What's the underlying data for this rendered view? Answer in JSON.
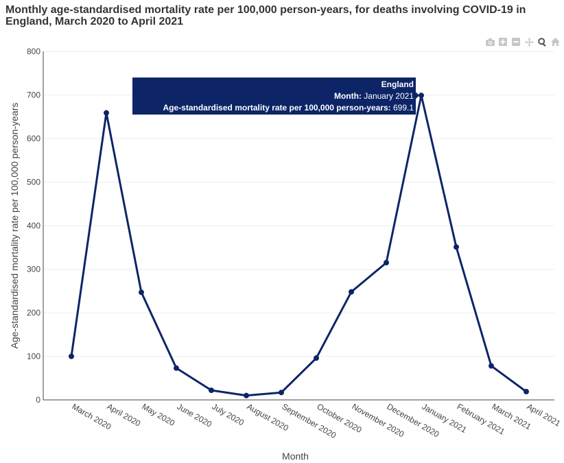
{
  "page": {
    "title": "Monthly age-standardised mortality rate per 100,000 person-years, for deaths involving COVID-19 in England, March 2020 to April 2021"
  },
  "modebar": {
    "icons": [
      "camera-icon",
      "zoom-in-icon",
      "zoom-out-icon",
      "pan-icon",
      "autoscale-icon",
      "home-icon"
    ],
    "color": "#c7c7c7"
  },
  "chart_data": {
    "type": "line",
    "title": "Monthly age-standardised mortality rate per 100,000 person-years, for deaths involving COVID-19 in England, March 2020 to April 2021",
    "xlabel": "Month",
    "ylabel": "Age-standardised mortality rate per 100,000 person-years",
    "ylim": [
      0,
      800
    ],
    "yticks": [
      0,
      100,
      200,
      300,
      400,
      500,
      600,
      700,
      800
    ],
    "grid": true,
    "categories": [
      "March 2020",
      "April 2020",
      "May 2020",
      "June 2020",
      "July 2020",
      "August 2020",
      "September 2020",
      "October 2020",
      "November 2020",
      "December 2020",
      "January 2021",
      "February 2021",
      "March 2021",
      "April 2021"
    ],
    "series": [
      {
        "name": "England",
        "color": "#0d2567",
        "values": [
          100,
          659,
          247,
          73,
          22,
          10,
          17,
          96,
          248,
          315,
          699.1,
          351,
          78,
          19
        ]
      }
    ],
    "tooltip": {
      "series_name": "England",
      "month_label": "Month:",
      "month_value": "January 2021",
      "rate_label": "Age-standardised mortality rate per 100,000 person-years:",
      "rate_value": "699.1",
      "background": "#0d2567"
    }
  }
}
